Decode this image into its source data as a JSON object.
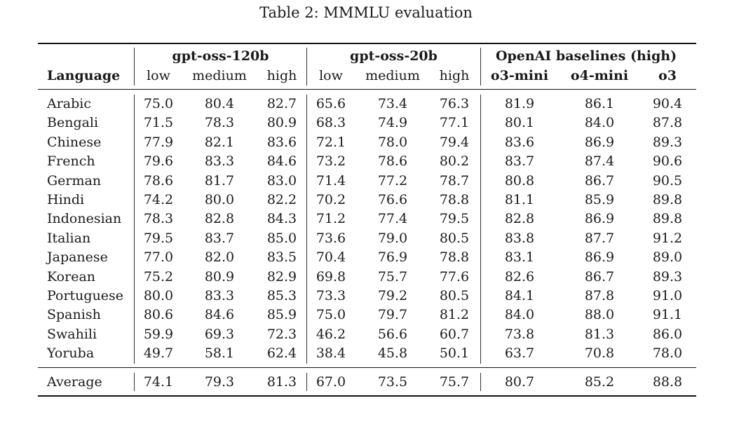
{
  "caption": "Table 2: MMMLU evaluation",
  "groups": [
    "gpt-oss-120b",
    "gpt-oss-20b",
    "OpenAI baselines (high)"
  ],
  "columns": {
    "language": "Language",
    "sub": [
      "low",
      "medium",
      "high",
      "low",
      "medium",
      "high",
      "o3-mini",
      "o4-mini",
      "o3"
    ]
  },
  "rows": [
    {
      "language": "Arabic",
      "values": [
        "75.0",
        "80.4",
        "82.7",
        "65.6",
        "73.4",
        "76.3",
        "81.9",
        "86.1",
        "90.4"
      ]
    },
    {
      "language": "Bengali",
      "values": [
        "71.5",
        "78.3",
        "80.9",
        "68.3",
        "74.9",
        "77.1",
        "80.1",
        "84.0",
        "87.8"
      ]
    },
    {
      "language": "Chinese",
      "values": [
        "77.9",
        "82.1",
        "83.6",
        "72.1",
        "78.0",
        "79.4",
        "83.6",
        "86.9",
        "89.3"
      ]
    },
    {
      "language": "French",
      "values": [
        "79.6",
        "83.3",
        "84.6",
        "73.2",
        "78.6",
        "80.2",
        "83.7",
        "87.4",
        "90.6"
      ]
    },
    {
      "language": "German",
      "values": [
        "78.6",
        "81.7",
        "83.0",
        "71.4",
        "77.2",
        "78.7",
        "80.8",
        "86.7",
        "90.5"
      ]
    },
    {
      "language": "Hindi",
      "values": [
        "74.2",
        "80.0",
        "82.2",
        "70.2",
        "76.6",
        "78.8",
        "81.1",
        "85.9",
        "89.8"
      ]
    },
    {
      "language": "Indonesian",
      "values": [
        "78.3",
        "82.8",
        "84.3",
        "71.2",
        "77.4",
        "79.5",
        "82.8",
        "86.9",
        "89.8"
      ]
    },
    {
      "language": "Italian",
      "values": [
        "79.5",
        "83.7",
        "85.0",
        "73.6",
        "79.0",
        "80.5",
        "83.8",
        "87.7",
        "91.2"
      ]
    },
    {
      "language": "Japanese",
      "values": [
        "77.0",
        "82.0",
        "83.5",
        "70.4",
        "76.9",
        "78.8",
        "83.1",
        "86.9",
        "89.0"
      ]
    },
    {
      "language": "Korean",
      "values": [
        "75.2",
        "80.9",
        "82.9",
        "69.8",
        "75.7",
        "77.6",
        "82.6",
        "86.7",
        "89.3"
      ]
    },
    {
      "language": "Portuguese",
      "values": [
        "80.0",
        "83.3",
        "85.3",
        "73.3",
        "79.2",
        "80.5",
        "84.1",
        "87.8",
        "91.0"
      ]
    },
    {
      "language": "Spanish",
      "values": [
        "80.6",
        "84.6",
        "85.9",
        "75.0",
        "79.7",
        "81.2",
        "84.0",
        "88.0",
        "91.1"
      ]
    },
    {
      "language": "Swahili",
      "values": [
        "59.9",
        "69.3",
        "72.3",
        "46.2",
        "56.6",
        "60.7",
        "73.8",
        "81.3",
        "86.0"
      ]
    },
    {
      "language": "Yoruba",
      "values": [
        "49.7",
        "58.1",
        "62.4",
        "38.4",
        "45.8",
        "50.1",
        "63.7",
        "70.8",
        "78.0"
      ]
    }
  ],
  "average": {
    "language": "Average",
    "values": [
      "74.1",
      "79.3",
      "81.3",
      "67.0",
      "73.5",
      "75.7",
      "80.7",
      "85.2",
      "88.8"
    ]
  }
}
